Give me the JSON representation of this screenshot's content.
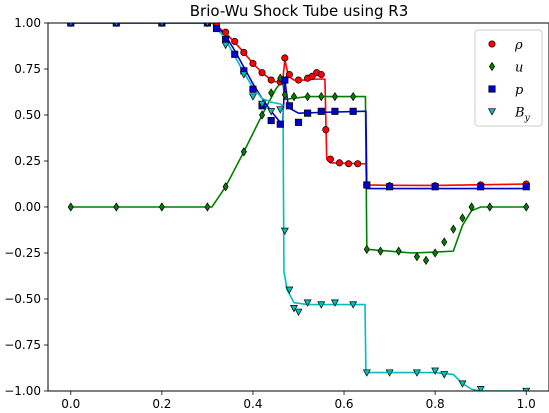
{
  "chart_data": {
    "type": "line",
    "title": "Brio-Wu Shock Tube using R3",
    "xlabel": "",
    "ylabel": "",
    "xlim": [
      -0.05,
      1.05
    ],
    "ylim": [
      -1.0,
      1.0
    ],
    "xticks": [
      0.0,
      0.2,
      0.4,
      0.6,
      0.8,
      1.0
    ],
    "xtick_labels": [
      "0.0",
      "0.2",
      "0.4",
      "0.6",
      "0.8",
      "1.0"
    ],
    "yticks": [
      -1.0,
      -0.75,
      -0.5,
      -0.25,
      0.0,
      0.25,
      0.5,
      0.75,
      1.0
    ],
    "ytick_labels": [
      "−1.00",
      "−0.75",
      "−0.50",
      "−0.25",
      "0.00",
      "0.25",
      "0.50",
      "0.75",
      "1.00"
    ],
    "grid": false,
    "legend_position": "top-right",
    "series": [
      {
        "name": "ρ",
        "color": "#ff0000",
        "marker": "circle",
        "line": [
          [
            0.0,
            1.0
          ],
          [
            0.31,
            1.0
          ],
          [
            0.32,
            0.985
          ],
          [
            0.34,
            0.945
          ],
          [
            0.36,
            0.895
          ],
          [
            0.38,
            0.84
          ],
          [
            0.4,
            0.78
          ],
          [
            0.42,
            0.73
          ],
          [
            0.44,
            0.69
          ],
          [
            0.45,
            0.68
          ],
          [
            0.465,
            0.68
          ],
          [
            0.47,
            0.8
          ],
          [
            0.478,
            0.71
          ],
          [
            0.49,
            0.69
          ],
          [
            0.52,
            0.69
          ],
          [
            0.53,
            0.695
          ],
          [
            0.558,
            0.695
          ],
          [
            0.562,
            0.26
          ],
          [
            0.57,
            0.24
          ],
          [
            0.64,
            0.235
          ],
          [
            0.648,
            0.235
          ],
          [
            0.65,
            0.12
          ],
          [
            0.7,
            0.118
          ],
          [
            0.8,
            0.117
          ],
          [
            1.0,
            0.125
          ]
        ],
        "markers": [
          [
            0.0,
            1.0
          ],
          [
            0.1,
            1.0
          ],
          [
            0.2,
            1.0
          ],
          [
            0.3,
            1.0
          ],
          [
            0.32,
            0.99
          ],
          [
            0.34,
            0.95
          ],
          [
            0.36,
            0.9
          ],
          [
            0.38,
            0.84
          ],
          [
            0.4,
            0.78
          ],
          [
            0.42,
            0.73
          ],
          [
            0.44,
            0.69
          ],
          [
            0.46,
            0.68
          ],
          [
            0.47,
            0.81
          ],
          [
            0.48,
            0.72
          ],
          [
            0.5,
            0.69
          ],
          [
            0.52,
            0.7
          ],
          [
            0.53,
            0.71
          ],
          [
            0.54,
            0.73
          ],
          [
            0.55,
            0.72
          ],
          [
            0.56,
            0.42
          ],
          [
            0.57,
            0.26
          ],
          [
            0.59,
            0.24
          ],
          [
            0.61,
            0.235
          ],
          [
            0.63,
            0.235
          ],
          [
            0.65,
            0.12
          ],
          [
            0.7,
            0.115
          ],
          [
            0.8,
            0.115
          ],
          [
            0.9,
            0.12
          ],
          [
            1.0,
            0.125
          ]
        ]
      },
      {
        "name": "u",
        "color": "#008000",
        "marker": "diamond",
        "line": [
          [
            0.0,
            0.0
          ],
          [
            0.31,
            0.0
          ],
          [
            0.34,
            0.11
          ],
          [
            0.38,
            0.3
          ],
          [
            0.42,
            0.5
          ],
          [
            0.45,
            0.64
          ],
          [
            0.465,
            0.69
          ],
          [
            0.47,
            0.585
          ],
          [
            0.52,
            0.6
          ],
          [
            0.6,
            0.6
          ],
          [
            0.647,
            0.6
          ],
          [
            0.65,
            -0.23
          ],
          [
            0.7,
            -0.24
          ],
          [
            0.75,
            -0.25
          ],
          [
            0.8,
            -0.245
          ],
          [
            0.84,
            -0.24
          ],
          [
            0.86,
            -0.1
          ],
          [
            0.88,
            -0.02
          ],
          [
            0.9,
            0.0
          ],
          [
            1.0,
            0.0
          ]
        ],
        "markers": [
          [
            0.0,
            0.0
          ],
          [
            0.1,
            0.0
          ],
          [
            0.2,
            0.0
          ],
          [
            0.3,
            0.0
          ],
          [
            0.34,
            0.11
          ],
          [
            0.38,
            0.3
          ],
          [
            0.42,
            0.5
          ],
          [
            0.44,
            0.62
          ],
          [
            0.46,
            0.7
          ],
          [
            0.47,
            0.61
          ],
          [
            0.49,
            0.6
          ],
          [
            0.52,
            0.6
          ],
          [
            0.55,
            0.6
          ],
          [
            0.58,
            0.6
          ],
          [
            0.62,
            0.6
          ],
          [
            0.65,
            -0.23
          ],
          [
            0.68,
            -0.24
          ],
          [
            0.72,
            -0.24
          ],
          [
            0.76,
            -0.27
          ],
          [
            0.78,
            -0.29
          ],
          [
            0.8,
            -0.25
          ],
          [
            0.82,
            -0.19
          ],
          [
            0.84,
            -0.12
          ],
          [
            0.86,
            -0.06
          ],
          [
            0.88,
            0.0
          ],
          [
            0.92,
            0.0
          ],
          [
            1.0,
            0.0
          ]
        ]
      },
      {
        "name": "p",
        "color": "#0000cc",
        "marker": "square",
        "line": [
          [
            0.0,
            1.0
          ],
          [
            0.31,
            1.0
          ],
          [
            0.32,
            0.985
          ],
          [
            0.34,
            0.93
          ],
          [
            0.36,
            0.85
          ],
          [
            0.38,
            0.76
          ],
          [
            0.4,
            0.67
          ],
          [
            0.42,
            0.59
          ],
          [
            0.44,
            0.52
          ],
          [
            0.46,
            0.46
          ],
          [
            0.465,
            0.45
          ],
          [
            0.47,
            0.69
          ],
          [
            0.478,
            0.54
          ],
          [
            0.5,
            0.51
          ],
          [
            0.56,
            0.515
          ],
          [
            0.64,
            0.52
          ],
          [
            0.648,
            0.52
          ],
          [
            0.65,
            0.1
          ],
          [
            0.7,
            0.1
          ],
          [
            0.8,
            0.1
          ],
          [
            1.0,
            0.1
          ]
        ],
        "markers": [
          [
            0.0,
            1.0
          ],
          [
            0.1,
            1.0
          ],
          [
            0.2,
            1.0
          ],
          [
            0.3,
            1.0
          ],
          [
            0.32,
            0.97
          ],
          [
            0.34,
            0.91
          ],
          [
            0.36,
            0.83
          ],
          [
            0.38,
            0.74
          ],
          [
            0.4,
            0.64
          ],
          [
            0.42,
            0.55
          ],
          [
            0.44,
            0.47
          ],
          [
            0.46,
            0.45
          ],
          [
            0.47,
            0.69
          ],
          [
            0.48,
            0.55
          ],
          [
            0.5,
            0.46
          ],
          [
            0.52,
            0.51
          ],
          [
            0.55,
            0.52
          ],
          [
            0.58,
            0.52
          ],
          [
            0.62,
            0.52
          ],
          [
            0.65,
            0.12
          ],
          [
            0.7,
            0.11
          ],
          [
            0.8,
            0.11
          ],
          [
            0.9,
            0.11
          ],
          [
            1.0,
            0.11
          ]
        ]
      },
      {
        "name": "B_y",
        "color": "#00bfbf",
        "marker": "triangle-down",
        "line": [
          [
            0.0,
            1.0
          ],
          [
            0.31,
            1.0
          ],
          [
            0.32,
            0.975
          ],
          [
            0.34,
            0.91
          ],
          [
            0.36,
            0.82
          ],
          [
            0.38,
            0.73
          ],
          [
            0.4,
            0.65
          ],
          [
            0.42,
            0.59
          ],
          [
            0.44,
            0.57
          ],
          [
            0.46,
            0.56
          ],
          [
            0.466,
            0.55
          ],
          [
            0.468,
            -0.35
          ],
          [
            0.475,
            -0.45
          ],
          [
            0.49,
            -0.52
          ],
          [
            0.52,
            -0.53
          ],
          [
            0.6,
            -0.53
          ],
          [
            0.646,
            -0.53
          ],
          [
            0.648,
            -0.9
          ],
          [
            0.7,
            -0.9
          ],
          [
            0.8,
            -0.9
          ],
          [
            0.84,
            -0.91
          ],
          [
            0.86,
            -0.96
          ],
          [
            0.88,
            -0.99
          ],
          [
            0.9,
            -1.0
          ],
          [
            1.0,
            -1.0
          ]
        ],
        "markers": [
          [
            0.0,
            1.0
          ],
          [
            0.1,
            1.0
          ],
          [
            0.2,
            1.0
          ],
          [
            0.3,
            1.0
          ],
          [
            0.34,
            0.88
          ],
          [
            0.38,
            0.72
          ],
          [
            0.4,
            0.6
          ],
          [
            0.42,
            0.56
          ],
          [
            0.44,
            0.52
          ],
          [
            0.46,
            0.53
          ],
          [
            0.47,
            -0.13
          ],
          [
            0.48,
            -0.45
          ],
          [
            0.49,
            -0.55
          ],
          [
            0.5,
            -0.57
          ],
          [
            0.52,
            -0.52
          ],
          [
            0.55,
            -0.53
          ],
          [
            0.58,
            -0.52
          ],
          [
            0.62,
            -0.53
          ],
          [
            0.65,
            -0.9
          ],
          [
            0.7,
            -0.9
          ],
          [
            0.76,
            -0.9
          ],
          [
            0.8,
            -0.89
          ],
          [
            0.82,
            -0.91
          ],
          [
            0.86,
            -0.96
          ],
          [
            0.9,
            -0.99
          ],
          [
            1.0,
            -1.0
          ]
        ]
      }
    ]
  }
}
